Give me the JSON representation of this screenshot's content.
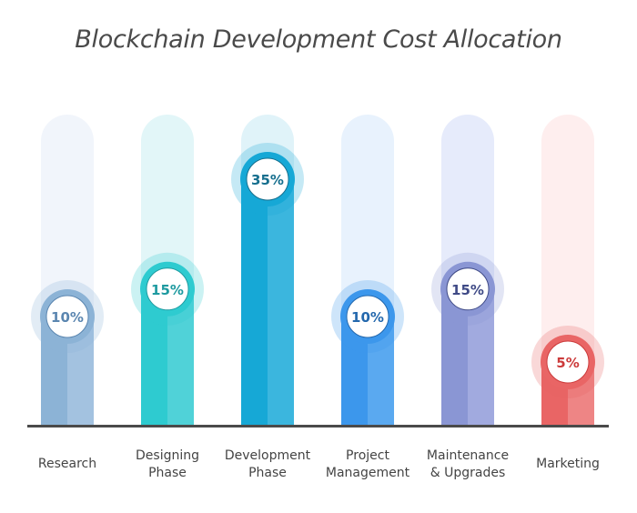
{
  "chart_data": {
    "type": "bar",
    "title": "Blockchain Development Cost Allocation",
    "xlabel": "",
    "ylabel": "",
    "ylim": [
      0,
      40
    ],
    "grid": false,
    "legend": "none",
    "categories": [
      [
        "Research"
      ],
      [
        "Designing",
        "Phase"
      ],
      [
        "Development",
        "Phase"
      ],
      [
        "Project",
        "Management"
      ],
      [
        "Maintenance",
        "& Upgrades"
      ],
      [
        "Marketing"
      ]
    ],
    "values": [
      10,
      15,
      35,
      10,
      15,
      5
    ],
    "value_labels": [
      "10%",
      "15%",
      "35%",
      "10%",
      "15%",
      "5%"
    ],
    "colors": [
      {
        "track": "#f1f5fb",
        "dark": "#8cb3d6",
        "light": "#a3c2e0",
        "text": "#5b86b0"
      },
      {
        "track": "#e2f6f8",
        "dark": "#2ecbd0",
        "light": "#50d2d8",
        "text": "#1e9aa0"
      },
      {
        "track": "#e0f3f9",
        "dark": "#16a8d6",
        "light": "#3bb6de",
        "text": "#166f8e"
      },
      {
        "track": "#e8f2fd",
        "dark": "#3c97ec",
        "light": "#5aa9f0",
        "text": "#2468ad"
      },
      {
        "track": "#e6ebfb",
        "dark": "#8a96d4",
        "light": "#a1aadf",
        "text": "#3f4a86"
      },
      {
        "track": "#feeeee",
        "dark": "#e96565",
        "light": "#ee8585",
        "text": "#cc3b3b"
      }
    ]
  }
}
